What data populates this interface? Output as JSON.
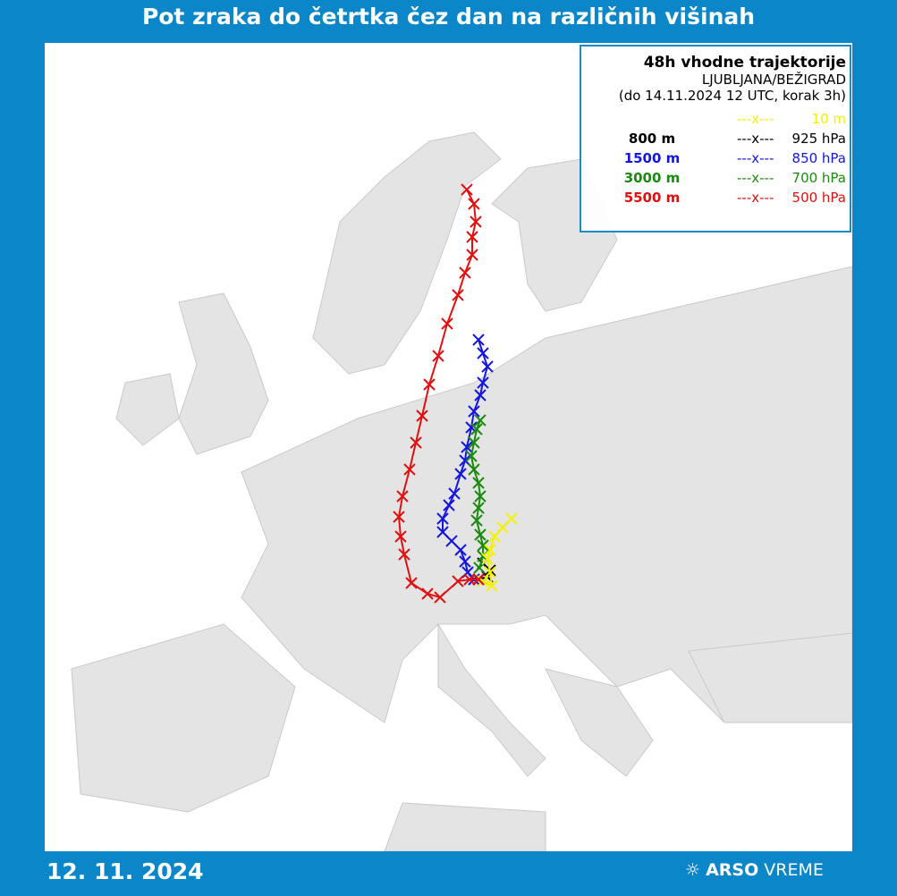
{
  "title": "Pot zraka do četrtka čez dan na različnih višinah",
  "legend": {
    "title": "48h vhodne trajektorije",
    "station": "LJUBLJANA/BEŽIGRAD",
    "period": "(do 14.11.2024 12 UTC, korak 3h)",
    "entries": [
      {
        "marker": "---x---",
        "label": "10 m",
        "color": "#f2f200"
      },
      {
        "height": "800 m",
        "marker": "---x---",
        "label": "925 hPa",
        "color": "#000000"
      },
      {
        "height": "1500 m",
        "marker": "---x---",
        "label": "850 hPa",
        "color": "#1515e0"
      },
      {
        "height": "3000 m",
        "marker": "---x---",
        "label": "700 hPa",
        "color": "#1a8a0e"
      },
      {
        "height": "5500 m",
        "marker": "---x---",
        "label": "500 hPa",
        "color": "#e01010"
      }
    ]
  },
  "date": "12. 11. 2024",
  "brand": {
    "name": "ARSO",
    "suffix": "VREME"
  }
}
